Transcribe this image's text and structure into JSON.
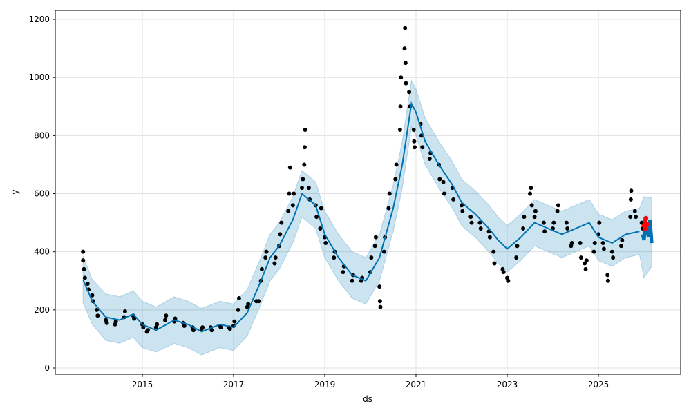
{
  "chart_data": {
    "type": "line",
    "title": "",
    "xlabel": "ds",
    "ylabel": "y",
    "xlim": [
      2013.1,
      2026.75
    ],
    "ylim": [
      -20,
      1230
    ],
    "xticks": [
      2015,
      2017,
      2019,
      2021,
      2023,
      2025
    ],
    "xtick_labels": [
      "2015",
      "2017",
      "2019",
      "2021",
      "2023",
      "2025"
    ],
    "yticks": [
      0,
      200,
      400,
      600,
      800,
      1000,
      1200
    ],
    "ytick_labels": [
      "0",
      "200",
      "400",
      "600",
      "800",
      "1000",
      "1200"
    ],
    "grid": true,
    "colors": {
      "forecast": "#0072B2",
      "band": "#0072B2",
      "observed": "#000000",
      "highlight": "#ff0000"
    },
    "forecast": [
      [
        2013.7,
        304,
        225,
        385
      ],
      [
        2013.9,
        230,
        150,
        305
      ],
      [
        2014.2,
        175,
        95,
        255
      ],
      [
        2014.5,
        165,
        85,
        245
      ],
      [
        2014.8,
        185,
        105,
        265
      ],
      [
        2015.0,
        150,
        70,
        230
      ],
      [
        2015.3,
        130,
        55,
        210
      ],
      [
        2015.7,
        165,
        85,
        245
      ],
      [
        2016.0,
        150,
        70,
        230
      ],
      [
        2016.3,
        125,
        45,
        205
      ],
      [
        2016.7,
        150,
        70,
        230
      ],
      [
        2017.0,
        140,
        60,
        220
      ],
      [
        2017.3,
        190,
        110,
        270
      ],
      [
        2017.6,
        300,
        220,
        380
      ],
      [
        2017.8,
        380,
        300,
        460
      ],
      [
        2018.0,
        420,
        340,
        500
      ],
      [
        2018.3,
        510,
        430,
        590
      ],
      [
        2018.5,
        600,
        520,
        680
      ],
      [
        2018.8,
        560,
        480,
        640
      ],
      [
        2019.0,
        460,
        380,
        540
      ],
      [
        2019.3,
        380,
        300,
        460
      ],
      [
        2019.6,
        320,
        240,
        400
      ],
      [
        2019.9,
        300,
        220,
        380
      ],
      [
        2020.2,
        380,
        300,
        460
      ],
      [
        2020.5,
        550,
        470,
        630
      ],
      [
        2020.7,
        700,
        620,
        780
      ],
      [
        2020.9,
        910,
        830,
        990
      ],
      [
        2021.0,
        880,
        800,
        960
      ],
      [
        2021.2,
        780,
        700,
        860
      ],
      [
        2021.5,
        700,
        620,
        780
      ],
      [
        2021.8,
        630,
        550,
        710
      ],
      [
        2022.0,
        570,
        490,
        650
      ],
      [
        2022.3,
        530,
        450,
        610
      ],
      [
        2022.6,
        480,
        400,
        560
      ],
      [
        2022.8,
        440,
        360,
        520
      ],
      [
        2023.0,
        410,
        330,
        490
      ],
      [
        2023.3,
        450,
        370,
        530
      ],
      [
        2023.6,
        500,
        420,
        580
      ],
      [
        2023.9,
        480,
        400,
        560
      ],
      [
        2024.2,
        460,
        380,
        540
      ],
      [
        2024.5,
        480,
        400,
        560
      ],
      [
        2024.8,
        500,
        420,
        580
      ],
      [
        2025.0,
        450,
        370,
        530
      ],
      [
        2025.3,
        430,
        350,
        510
      ],
      [
        2025.6,
        460,
        380,
        540
      ],
      [
        2025.9,
        470,
        390,
        550
      ],
      [
        2026.0,
        440,
        310,
        590
      ],
      [
        2026.17,
        430,
        350,
        585
      ]
    ],
    "forecast_future": [
      [
        2025.97,
        460
      ],
      [
        2026.0,
        440
      ],
      [
        2026.03,
        500
      ],
      [
        2026.06,
        480
      ],
      [
        2026.1,
        450
      ],
      [
        2026.13,
        510
      ],
      [
        2026.17,
        430
      ]
    ],
    "observed": [
      [
        2013.7,
        400
      ],
      [
        2013.7,
        370
      ],
      [
        2013.72,
        340
      ],
      [
        2013.74,
        310
      ],
      [
        2013.8,
        290
      ],
      [
        2013.82,
        270
      ],
      [
        2013.9,
        250
      ],
      [
        2013.92,
        230
      ],
      [
        2014.0,
        200
      ],
      [
        2014.02,
        180
      ],
      [
        2014.2,
        165
      ],
      [
        2014.22,
        155
      ],
      [
        2014.4,
        150
      ],
      [
        2014.42,
        160
      ],
      [
        2014.6,
        175
      ],
      [
        2014.62,
        195
      ],
      [
        2014.8,
        180
      ],
      [
        2014.82,
        170
      ],
      [
        2015.0,
        150
      ],
      [
        2015.02,
        140
      ],
      [
        2015.1,
        125
      ],
      [
        2015.12,
        130
      ],
      [
        2015.3,
        140
      ],
      [
        2015.32,
        150
      ],
      [
        2015.5,
        165
      ],
      [
        2015.52,
        180
      ],
      [
        2015.7,
        160
      ],
      [
        2015.72,
        170
      ],
      [
        2015.9,
        155
      ],
      [
        2015.92,
        145
      ],
      [
        2016.1,
        140
      ],
      [
        2016.12,
        130
      ],
      [
        2016.3,
        135
      ],
      [
        2016.32,
        140
      ],
      [
        2016.5,
        140
      ],
      [
        2016.52,
        130
      ],
      [
        2016.7,
        145
      ],
      [
        2016.72,
        140
      ],
      [
        2016.9,
        140
      ],
      [
        2016.92,
        135
      ],
      [
        2017.0,
        145
      ],
      [
        2017.02,
        160
      ],
      [
        2017.1,
        200
      ],
      [
        2017.12,
        240
      ],
      [
        2017.3,
        210
      ],
      [
        2017.32,
        220
      ],
      [
        2017.5,
        230
      ],
      [
        2017.55,
        230
      ],
      [
        2017.6,
        300
      ],
      [
        2017.62,
        340
      ],
      [
        2017.7,
        380
      ],
      [
        2017.72,
        400
      ],
      [
        2017.9,
        360
      ],
      [
        2017.92,
        380
      ],
      [
        2018.0,
        420
      ],
      [
        2018.02,
        460
      ],
      [
        2018.05,
        500
      ],
      [
        2018.2,
        540
      ],
      [
        2018.22,
        600
      ],
      [
        2018.24,
        690
      ],
      [
        2018.3,
        560
      ],
      [
        2018.32,
        600
      ],
      [
        2018.5,
        620
      ],
      [
        2018.52,
        650
      ],
      [
        2018.55,
        700
      ],
      [
        2018.56,
        760
      ],
      [
        2018.57,
        820
      ],
      [
        2018.65,
        620
      ],
      [
        2018.67,
        580
      ],
      [
        2018.8,
        560
      ],
      [
        2018.82,
        520
      ],
      [
        2018.9,
        480
      ],
      [
        2018.92,
        550
      ],
      [
        2019.0,
        450
      ],
      [
        2019.02,
        430
      ],
      [
        2019.2,
        380
      ],
      [
        2019.22,
        400
      ],
      [
        2019.4,
        330
      ],
      [
        2019.42,
        350
      ],
      [
        2019.6,
        300
      ],
      [
        2019.62,
        320
      ],
      [
        2019.8,
        300
      ],
      [
        2019.82,
        310
      ],
      [
        2020.0,
        330
      ],
      [
        2020.02,
        380
      ],
      [
        2020.1,
        420
      ],
      [
        2020.12,
        450
      ],
      [
        2020.2,
        280
      ],
      [
        2020.21,
        230
      ],
      [
        2020.22,
        210
      ],
      [
        2020.3,
        400
      ],
      [
        2020.32,
        450
      ],
      [
        2020.4,
        550
      ],
      [
        2020.42,
        600
      ],
      [
        2020.55,
        650
      ],
      [
        2020.57,
        700
      ],
      [
        2020.65,
        820
      ],
      [
        2020.66,
        900
      ],
      [
        2020.67,
        1000
      ],
      [
        2020.75,
        1100
      ],
      [
        2020.76,
        1170
      ],
      [
        2020.77,
        1050
      ],
      [
        2020.78,
        980
      ],
      [
        2020.85,
        950
      ],
      [
        2020.87,
        900
      ],
      [
        2020.95,
        820
      ],
      [
        2020.96,
        780
      ],
      [
        2020.97,
        760
      ],
      [
        2021.1,
        840
      ],
      [
        2021.12,
        800
      ],
      [
        2021.14,
        760
      ],
      [
        2021.3,
        720
      ],
      [
        2021.32,
        740
      ],
      [
        2021.5,
        700
      ],
      [
        2021.52,
        650
      ],
      [
        2021.6,
        640
      ],
      [
        2021.62,
        600
      ],
      [
        2021.8,
        620
      ],
      [
        2021.82,
        580
      ],
      [
        2022.0,
        560
      ],
      [
        2022.02,
        540
      ],
      [
        2022.2,
        520
      ],
      [
        2022.22,
        500
      ],
      [
        2022.4,
        500
      ],
      [
        2022.42,
        480
      ],
      [
        2022.6,
        470
      ],
      [
        2022.62,
        450
      ],
      [
        2022.7,
        400
      ],
      [
        2022.72,
        360
      ],
      [
        2022.9,
        340
      ],
      [
        2022.92,
        330
      ],
      [
        2023.0,
        310
      ],
      [
        2023.02,
        300
      ],
      [
        2023.2,
        380
      ],
      [
        2023.22,
        420
      ],
      [
        2023.35,
        480
      ],
      [
        2023.37,
        520
      ],
      [
        2023.5,
        600
      ],
      [
        2023.52,
        620
      ],
      [
        2023.54,
        560
      ],
      [
        2023.6,
        520
      ],
      [
        2023.62,
        540
      ],
      [
        2023.8,
        500
      ],
      [
        2023.82,
        470
      ],
      [
        2024.0,
        480
      ],
      [
        2024.02,
        500
      ],
      [
        2024.1,
        540
      ],
      [
        2024.12,
        560
      ],
      [
        2024.3,
        500
      ],
      [
        2024.32,
        480
      ],
      [
        2024.4,
        420
      ],
      [
        2024.42,
        430
      ],
      [
        2024.6,
        430
      ],
      [
        2024.62,
        380
      ],
      [
        2024.7,
        360
      ],
      [
        2024.72,
        340
      ],
      [
        2024.74,
        370
      ],
      [
        2024.9,
        400
      ],
      [
        2024.92,
        430
      ],
      [
        2025.0,
        460
      ],
      [
        2025.02,
        500
      ],
      [
        2025.1,
        430
      ],
      [
        2025.12,
        410
      ],
      [
        2025.2,
        320
      ],
      [
        2025.21,
        300
      ],
      [
        2025.3,
        400
      ],
      [
        2025.32,
        380
      ],
      [
        2025.5,
        420
      ],
      [
        2025.52,
        440
      ],
      [
        2025.7,
        520
      ],
      [
        2025.71,
        580
      ],
      [
        2025.72,
        610
      ],
      [
        2025.8,
        540
      ],
      [
        2025.82,
        520
      ],
      [
        2025.95,
        500
      ],
      [
        2025.97,
        480
      ]
    ],
    "highlight": [
      [
        2026.0,
        490
      ],
      [
        2026.02,
        505
      ],
      [
        2026.04,
        515
      ],
      [
        2026.06,
        495
      ],
      [
        2026.03,
        480
      ]
    ]
  }
}
